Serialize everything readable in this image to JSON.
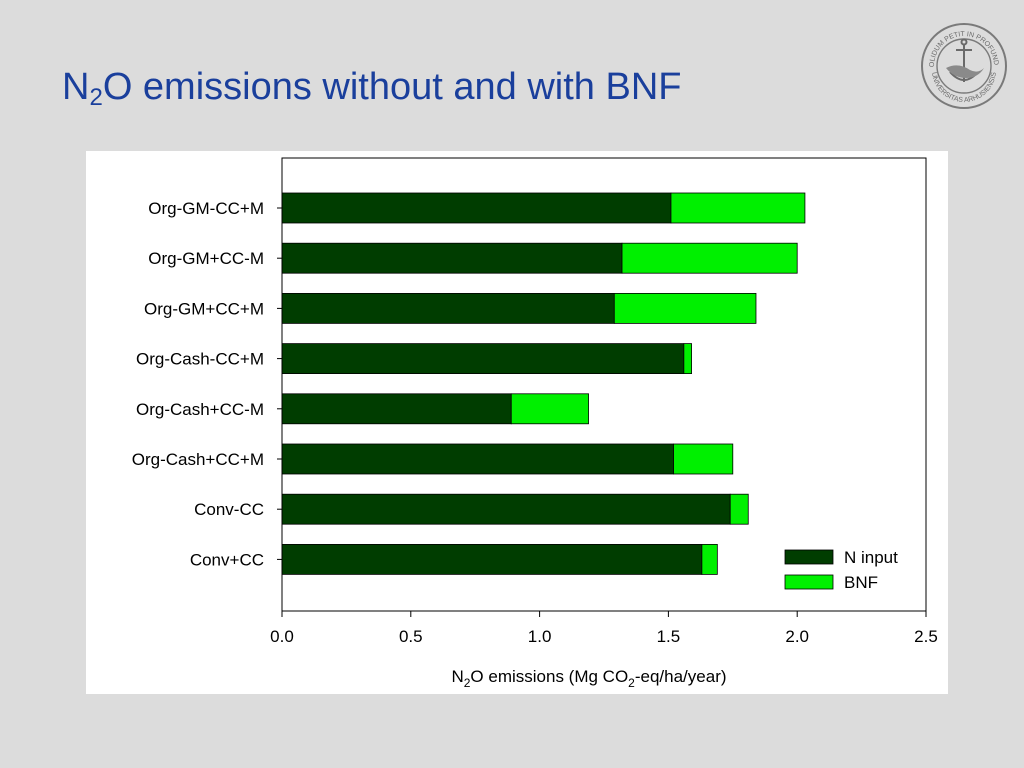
{
  "slide": {
    "title_main": "N",
    "title_sub": "2",
    "title_rest": "O emissions without and with BNF",
    "seal_text_top": "SOLIDUM PETIT IN PROFUNDIS",
    "seal_text_bottom": "UNIVERSITAS ARHUSIENSIS"
  },
  "chart_data": {
    "type": "bar",
    "orientation": "horizontal",
    "stacked": true,
    "categories": [
      "Org-GM-CC+M",
      "Org-GM+CC-M",
      "Org-GM+CC+M",
      "Org-Cash-CC+M",
      "Org-Cash+CC-M",
      "Org-Cash+CC+M",
      "Conv-CC",
      "Conv+CC"
    ],
    "series": [
      {
        "name": "N input",
        "color": "#003d00",
        "values": [
          1.51,
          1.32,
          1.29,
          1.56,
          0.89,
          1.52,
          1.74,
          1.63
        ]
      },
      {
        "name": "BNF",
        "color": "#00f000",
        "values": [
          0.52,
          0.68,
          0.55,
          0.03,
          0.3,
          0.23,
          0.07,
          0.06
        ]
      }
    ],
    "xlim": [
      0,
      2.5
    ],
    "x_ticks": [
      "0.0",
      "0.5",
      "1.0",
      "1.5",
      "2.0",
      "2.5"
    ],
    "xlabel": {
      "part1": "N",
      "sub1": "2",
      "part2": "O emissions (Mg CO",
      "sub2": "2",
      "part3": "-eq/ha/year)"
    },
    "grid": false,
    "legend_position": "bottom-right"
  }
}
